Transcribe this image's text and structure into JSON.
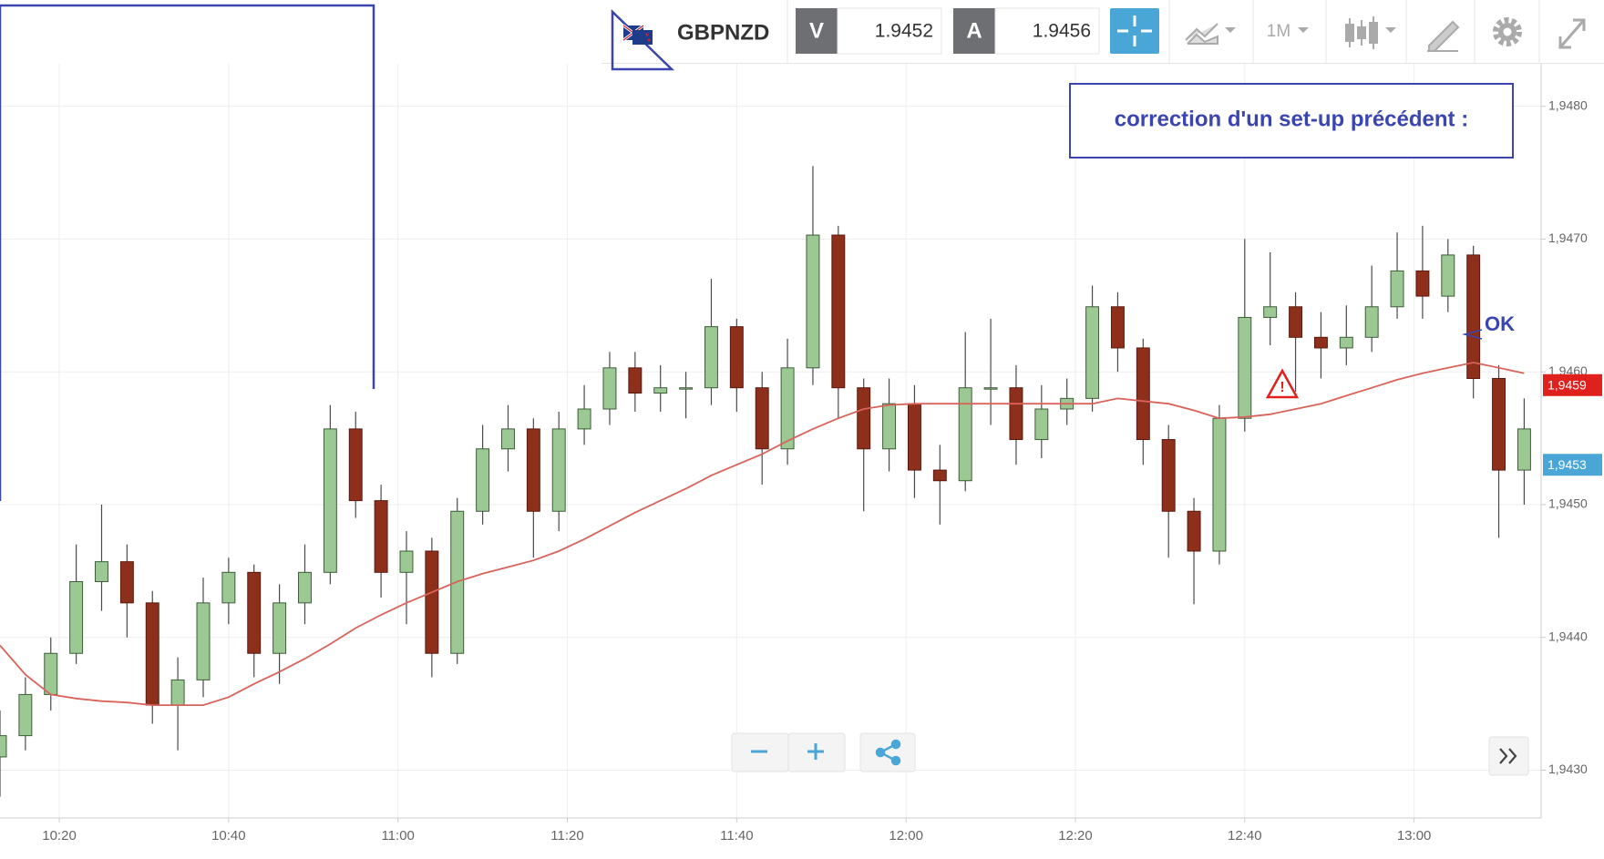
{
  "toolbar": {
    "symbol": "GBPNZD",
    "sell_label": "V",
    "sell_price": 1.9452,
    "buy_label": "A",
    "buy_price": 1.9456,
    "timeframe": "1M"
  },
  "chart_data": {
    "type": "candlestick",
    "annotation": "correction d'un set-up précédent :",
    "marker_label": "OK",
    "up_color": "#9cc894",
    "down_color": "#8e2f1c",
    "ma_color": "#d9635a",
    "grid": true,
    "xlim": [
      "10:13",
      "13:15"
    ],
    "xticks": [
      "10:20",
      "10:40",
      "11:00",
      "11:20",
      "11:40",
      "12:00",
      "12:20",
      "12:40",
      "13:00"
    ],
    "ylim": [
      1.94264,
      1.94832
    ],
    "yticks": [
      {
        "value": 1.943,
        "label": "1,9430"
      },
      {
        "value": 1.944,
        "label": "1,9440"
      },
      {
        "value": 1.945,
        "label": "1,9450"
      },
      {
        "value": 1.946,
        "label": "1,9460"
      },
      {
        "value": 1.947,
        "label": "1,9470"
      },
      {
        "value": 1.948,
        "label": "1,9480"
      }
    ],
    "price_tags": [
      {
        "value": 1.9459,
        "label": "1,9459",
        "color": "#e0201c"
      },
      {
        "value": 1.9453,
        "label": "1,9453",
        "color": "#4aa6d6"
      }
    ],
    "x": [
      "10:13",
      "10:16",
      "10:19",
      "10:22",
      "10:25",
      "10:28",
      "10:31",
      "10:34",
      "10:37",
      "10:40",
      "10:43",
      "10:46",
      "10:49",
      "10:52",
      "10:55",
      "10:58",
      "11:01",
      "11:04",
      "11:07",
      "11:10",
      "11:13",
      "11:16",
      "11:19",
      "11:22",
      "11:25",
      "11:28",
      "11:31",
      "11:34",
      "11:37",
      "11:40",
      "11:43",
      "11:46",
      "11:49",
      "11:52",
      "11:55",
      "11:58",
      "12:01",
      "12:04",
      "12:07",
      "12:10",
      "12:13",
      "12:16",
      "12:19",
      "12:22",
      "12:25",
      "12:28",
      "12:31",
      "12:34",
      "12:37",
      "12:40",
      "12:43",
      "12:46",
      "12:49",
      "12:52",
      "12:55",
      "12:58",
      "13:01",
      "13:04",
      "13:07",
      "13:10",
      "13:13"
    ],
    "open": [
      1.9431,
      1.94326,
      1.94357,
      1.94388,
      1.94442,
      1.94457,
      1.94426,
      1.94349,
      1.94368,
      1.94426,
      1.94449,
      1.94388,
      1.94426,
      1.94449,
      1.94557,
      1.94503,
      1.94449,
      1.94465,
      1.94388,
      1.94495,
      1.94542,
      1.94557,
      1.94495,
      1.94557,
      1.94572,
      1.94603,
      1.94584,
      1.94588,
      1.94588,
      1.94634,
      1.94588,
      1.94542,
      1.94603,
      1.94703,
      1.94588,
      1.94542,
      1.94576,
      1.94526,
      1.94518,
      1.94588,
      1.94588,
      1.94549,
      1.94572,
      1.9458,
      1.94649,
      1.94618,
      1.94549,
      1.94495,
      1.94465,
      1.94565,
      1.94641,
      1.94649,
      1.94626,
      1.94618,
      1.94626,
      1.94649,
      1.94676,
      1.94657,
      1.94688,
      1.94595,
      1.94526
    ],
    "high": [
      1.94345,
      1.9437,
      1.944,
      1.9447,
      1.945,
      1.9447,
      1.94435,
      1.94385,
      1.94445,
      1.9446,
      1.94455,
      1.9444,
      1.9447,
      1.94575,
      1.9457,
      1.94515,
      1.9448,
      1.94475,
      1.94505,
      1.9456,
      1.94575,
      1.94565,
      1.9457,
      1.9459,
      1.94615,
      1.94615,
      1.94605,
      1.946,
      1.9467,
      1.9464,
      1.946,
      1.94625,
      1.94755,
      1.9471,
      1.94595,
      1.94595,
      1.9459,
      1.94545,
      1.9463,
      1.9464,
      1.94605,
      1.9459,
      1.94595,
      1.94665,
      1.9466,
      1.94625,
      1.9456,
      1.94505,
      1.94575,
      1.947,
      1.9469,
      1.9466,
      1.94645,
      1.9465,
      1.9468,
      1.94705,
      1.9471,
      1.947,
      1.94695,
      1.94605,
      1.9458
    ],
    "low": [
      1.9428,
      1.94315,
      1.94345,
      1.9438,
      1.9442,
      1.944,
      1.94335,
      1.94315,
      1.94355,
      1.9441,
      1.9437,
      1.94365,
      1.9441,
      1.9444,
      1.9449,
      1.9443,
      1.9441,
      1.9437,
      1.9438,
      1.94485,
      1.94525,
      1.9446,
      1.9448,
      1.94545,
      1.9456,
      1.9457,
      1.9457,
      1.94565,
      1.94575,
      1.9457,
      1.94515,
      1.9453,
      1.9459,
      1.94565,
      1.94495,
      1.94525,
      1.94505,
      1.94485,
      1.9451,
      1.9456,
      1.9453,
      1.94535,
      1.9456,
      1.9457,
      1.946,
      1.9453,
      1.9446,
      1.94425,
      1.94455,
      1.94555,
      1.9462,
      1.94585,
      1.94595,
      1.94605,
      1.94615,
      1.9464,
      1.9464,
      1.94645,
      1.9458,
      1.94475,
      1.945
    ],
    "close": [
      1.94326,
      1.94357,
      1.94388,
      1.94442,
      1.94457,
      1.94426,
      1.94349,
      1.94368,
      1.94426,
      1.94449,
      1.94388,
      1.94426,
      1.94449,
      1.94557,
      1.94503,
      1.94449,
      1.94465,
      1.94388,
      1.94495,
      1.94542,
      1.94557,
      1.94495,
      1.94557,
      1.94572,
      1.94603,
      1.94584,
      1.94588,
      1.94588,
      1.94634,
      1.94588,
      1.94542,
      1.94603,
      1.94703,
      1.94588,
      1.94542,
      1.94576,
      1.94526,
      1.94518,
      1.94588,
      1.94588,
      1.94549,
      1.94572,
      1.9458,
      1.94649,
      1.94618,
      1.94549,
      1.94495,
      1.94465,
      1.94565,
      1.94641,
      1.94649,
      1.94626,
      1.94618,
      1.94626,
      1.94649,
      1.94676,
      1.94657,
      1.94688,
      1.94595,
      1.94526,
      1.94557
    ],
    "moving_average": [
      1.94394,
      1.94372,
      1.94357,
      1.94354,
      1.94352,
      1.94351,
      1.94349,
      1.94349,
      1.94349,
      1.94355,
      1.94365,
      1.94374,
      1.94384,
      1.94395,
      1.94407,
      1.94417,
      1.94426,
      1.94434,
      1.94442,
      1.94448,
      1.94453,
      1.94458,
      1.94465,
      1.94474,
      1.94484,
      1.94494,
      1.94503,
      1.94512,
      1.94522,
      1.9453,
      1.94538,
      1.94548,
      1.94557,
      1.94565,
      1.94572,
      1.94575,
      1.94576,
      1.94576,
      1.94576,
      1.94576,
      1.94576,
      1.94576,
      1.94576,
      1.94576,
      1.9458,
      1.94578,
      1.94576,
      1.94571,
      1.94565,
      1.94566,
      1.94568,
      1.94572,
      1.94576,
      1.94582,
      1.94588,
      1.94594,
      1.94599,
      1.94603,
      1.94607,
      1.94603,
      1.94599
    ]
  }
}
